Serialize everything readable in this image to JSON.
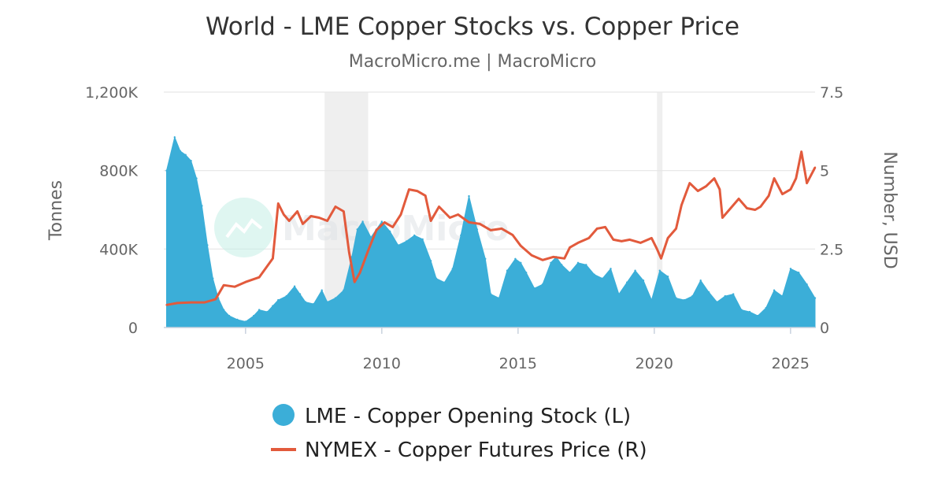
{
  "chart_data": {
    "type": "area+line",
    "title": "World - LME Copper Stocks vs. Copper Price",
    "subtitle": "MacroMicro.me | MacroMicro",
    "watermark": "MacroMicro",
    "x_range": [
      2002.0,
      2025.9
    ],
    "x_ticks": [
      {
        "value": 2005,
        "label": "2005"
      },
      {
        "value": 2010,
        "label": "2010"
      },
      {
        "value": 2015,
        "label": "2015"
      },
      {
        "value": 2020,
        "label": "2020"
      },
      {
        "value": 2025,
        "label": "2025"
      }
    ],
    "y_left": {
      "title": "Tonnes",
      "range": [
        0,
        1200000
      ],
      "ticks": [
        {
          "value": 0,
          "label": "0"
        },
        {
          "value": 400000,
          "label": "400K"
        },
        {
          "value": 800000,
          "label": "800K"
        },
        {
          "value": 1200000,
          "label": "1,200K"
        }
      ]
    },
    "y_right": {
      "title": "Number, USD",
      "range": [
        0,
        7.5
      ],
      "ticks": [
        {
          "value": 0,
          "label": "0"
        },
        {
          "value": 2.5,
          "label": "2.5"
        },
        {
          "value": 5,
          "label": "5"
        },
        {
          "value": 7.5,
          "label": "7.5"
        }
      ]
    },
    "shaded_periods": [
      [
        2007.9,
        2009.5
      ],
      [
        2020.1,
        2020.3
      ]
    ],
    "colors": {
      "stocks": "#3baed8",
      "price": "#e25a3c"
    },
    "series": [
      {
        "name": "LME - Copper Opening Stock (L)",
        "axis": "left",
        "type": "area",
        "x": [
          2002.1,
          2002.4,
          2002.6,
          2002.8,
          2003.0,
          2003.2,
          2003.4,
          2003.6,
          2003.8,
          2004.0,
          2004.2,
          2004.4,
          2004.7,
          2005.0,
          2005.3,
          2005.5,
          2005.8,
          2006.0,
          2006.2,
          2006.5,
          2006.8,
          2007.0,
          2007.2,
          2007.5,
          2007.8,
          2008.0,
          2008.3,
          2008.6,
          2008.9,
          2009.1,
          2009.3,
          2009.6,
          2009.8,
          2010.0,
          2010.3,
          2010.6,
          2010.9,
          2011.2,
          2011.5,
          2011.8,
          2012.0,
          2012.3,
          2012.6,
          2012.9,
          2013.2,
          2013.5,
          2013.8,
          2014.0,
          2014.3,
          2014.6,
          2014.9,
          2015.1,
          2015.3,
          2015.6,
          2015.9,
          2016.2,
          2016.4,
          2016.6,
          2016.9,
          2017.2,
          2017.5,
          2017.8,
          2018.1,
          2018.4,
          2018.7,
          2019.0,
          2019.3,
          2019.6,
          2019.9,
          2020.2,
          2020.5,
          2020.8,
          2021.1,
          2021.4,
          2021.7,
          2022.0,
          2022.3,
          2022.6,
          2022.9,
          2023.2,
          2023.5,
          2023.8,
          2024.1,
          2024.4,
          2024.7,
          2025.0,
          2025.3,
          2025.6,
          2025.9
        ],
        "values": [
          800000,
          970000,
          900000,
          880000,
          850000,
          760000,
          620000,
          420000,
          250000,
          150000,
          90000,
          60000,
          40000,
          30000,
          60000,
          90000,
          80000,
          110000,
          140000,
          160000,
          210000,
          170000,
          130000,
          120000,
          190000,
          130000,
          150000,
          190000,
          360000,
          500000,
          540000,
          460000,
          500000,
          540000,
          490000,
          420000,
          440000,
          470000,
          450000,
          340000,
          250000,
          230000,
          300000,
          470000,
          670000,
          500000,
          350000,
          170000,
          150000,
          290000,
          350000,
          330000,
          280000,
          200000,
          220000,
          330000,
          360000,
          320000,
          280000,
          330000,
          320000,
          270000,
          250000,
          300000,
          170000,
          230000,
          290000,
          240000,
          140000,
          290000,
          260000,
          150000,
          140000,
          160000,
          240000,
          180000,
          130000,
          160000,
          170000,
          90000,
          80000,
          60000,
          100000,
          190000,
          160000,
          300000,
          280000,
          220000,
          150000
        ]
      },
      {
        "name": "NYMEX - Copper Futures Price (R)",
        "axis": "right",
        "type": "line",
        "x": [
          2002.1,
          2002.5,
          2003.0,
          2003.5,
          2003.9,
          2004.2,
          2004.6,
          2005.0,
          2005.5,
          2006.0,
          2006.2,
          2006.4,
          2006.6,
          2006.9,
          2007.1,
          2007.4,
          2007.7,
          2008.0,
          2008.3,
          2008.6,
          2008.8,
          2009.0,
          2009.2,
          2009.5,
          2009.8,
          2010.1,
          2010.4,
          2010.7,
          2011.0,
          2011.3,
          2011.6,
          2011.8,
          2012.1,
          2012.5,
          2012.8,
          2013.2,
          2013.6,
          2014.0,
          2014.4,
          2014.8,
          2015.1,
          2015.5,
          2015.9,
          2016.3,
          2016.7,
          2016.9,
          2017.2,
          2017.6,
          2017.9,
          2018.2,
          2018.5,
          2018.8,
          2019.1,
          2019.5,
          2019.9,
          2020.1,
          2020.25,
          2020.5,
          2020.8,
          2021.0,
          2021.3,
          2021.6,
          2021.9,
          2022.2,
          2022.4,
          2022.5,
          2022.7,
          2022.9,
          2023.1,
          2023.4,
          2023.7,
          2023.9,
          2024.2,
          2024.4,
          2024.7,
          2025.0,
          2025.2,
          2025.4,
          2025.6,
          2025.9
        ],
        "values": [
          0.72,
          0.78,
          0.8,
          0.8,
          0.9,
          1.35,
          1.3,
          1.45,
          1.6,
          2.2,
          3.95,
          3.6,
          3.4,
          3.7,
          3.3,
          3.55,
          3.5,
          3.4,
          3.85,
          3.7,
          2.4,
          1.45,
          1.75,
          2.45,
          3.1,
          3.35,
          3.2,
          3.6,
          4.4,
          4.35,
          4.2,
          3.4,
          3.85,
          3.5,
          3.6,
          3.35,
          3.3,
          3.1,
          3.15,
          2.95,
          2.6,
          2.3,
          2.15,
          2.25,
          2.2,
          2.55,
          2.7,
          2.85,
          3.15,
          3.2,
          2.8,
          2.75,
          2.8,
          2.7,
          2.85,
          2.5,
          2.2,
          2.85,
          3.15,
          3.9,
          4.6,
          4.35,
          4.5,
          4.75,
          4.4,
          3.5,
          3.7,
          3.9,
          4.1,
          3.8,
          3.75,
          3.85,
          4.2,
          4.75,
          4.25,
          4.4,
          4.75,
          5.6,
          4.6,
          5.1
        ]
      }
    ]
  }
}
